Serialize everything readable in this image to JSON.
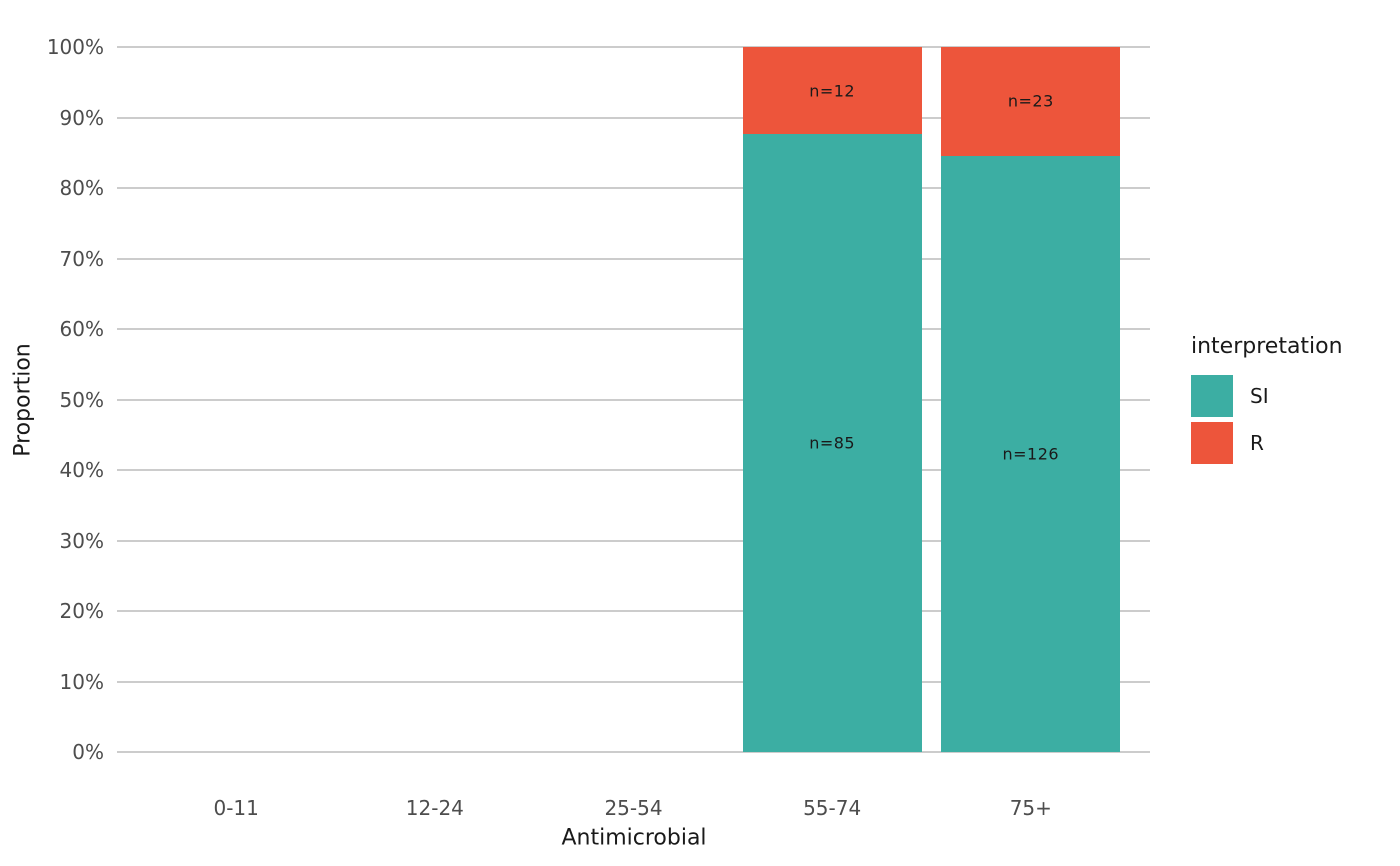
{
  "figure": {
    "background": "#FFFFFF"
  },
  "chart_data": {
    "type": "bar",
    "stacked": true,
    "normalized": "percent",
    "title": "",
    "xlabel": "Antimicrobial",
    "ylabel": "Proportion",
    "categories": [
      "0-11",
      "12-24",
      "25-54",
      "55-74",
      "75+"
    ],
    "series": [
      {
        "name": "SI",
        "color": "#3CAEA3",
        "values": [
          null,
          null,
          null,
          85,
          126
        ],
        "labels": [
          null,
          null,
          null,
          "n=85",
          "n=126"
        ]
      },
      {
        "name": "R",
        "color": "#ED553B",
        "values": [
          null,
          null,
          null,
          12,
          23
        ],
        "labels": [
          null,
          null,
          null,
          "n=12",
          "n=23"
        ]
      }
    ],
    "y_ticks": [
      "0%",
      "10%",
      "20%",
      "30%",
      "40%",
      "50%",
      "60%",
      "70%",
      "80%",
      "90%",
      "100%"
    ],
    "ylim": [
      0,
      100
    ],
    "grid": "major-horizontal",
    "grid_color": "#CCCCCC",
    "legend": {
      "title": "interpretation",
      "position": "right",
      "entries": [
        {
          "label": "SI",
          "color": "#3CAEA3"
        },
        {
          "label": "R",
          "color": "#ED553B"
        }
      ]
    }
  }
}
